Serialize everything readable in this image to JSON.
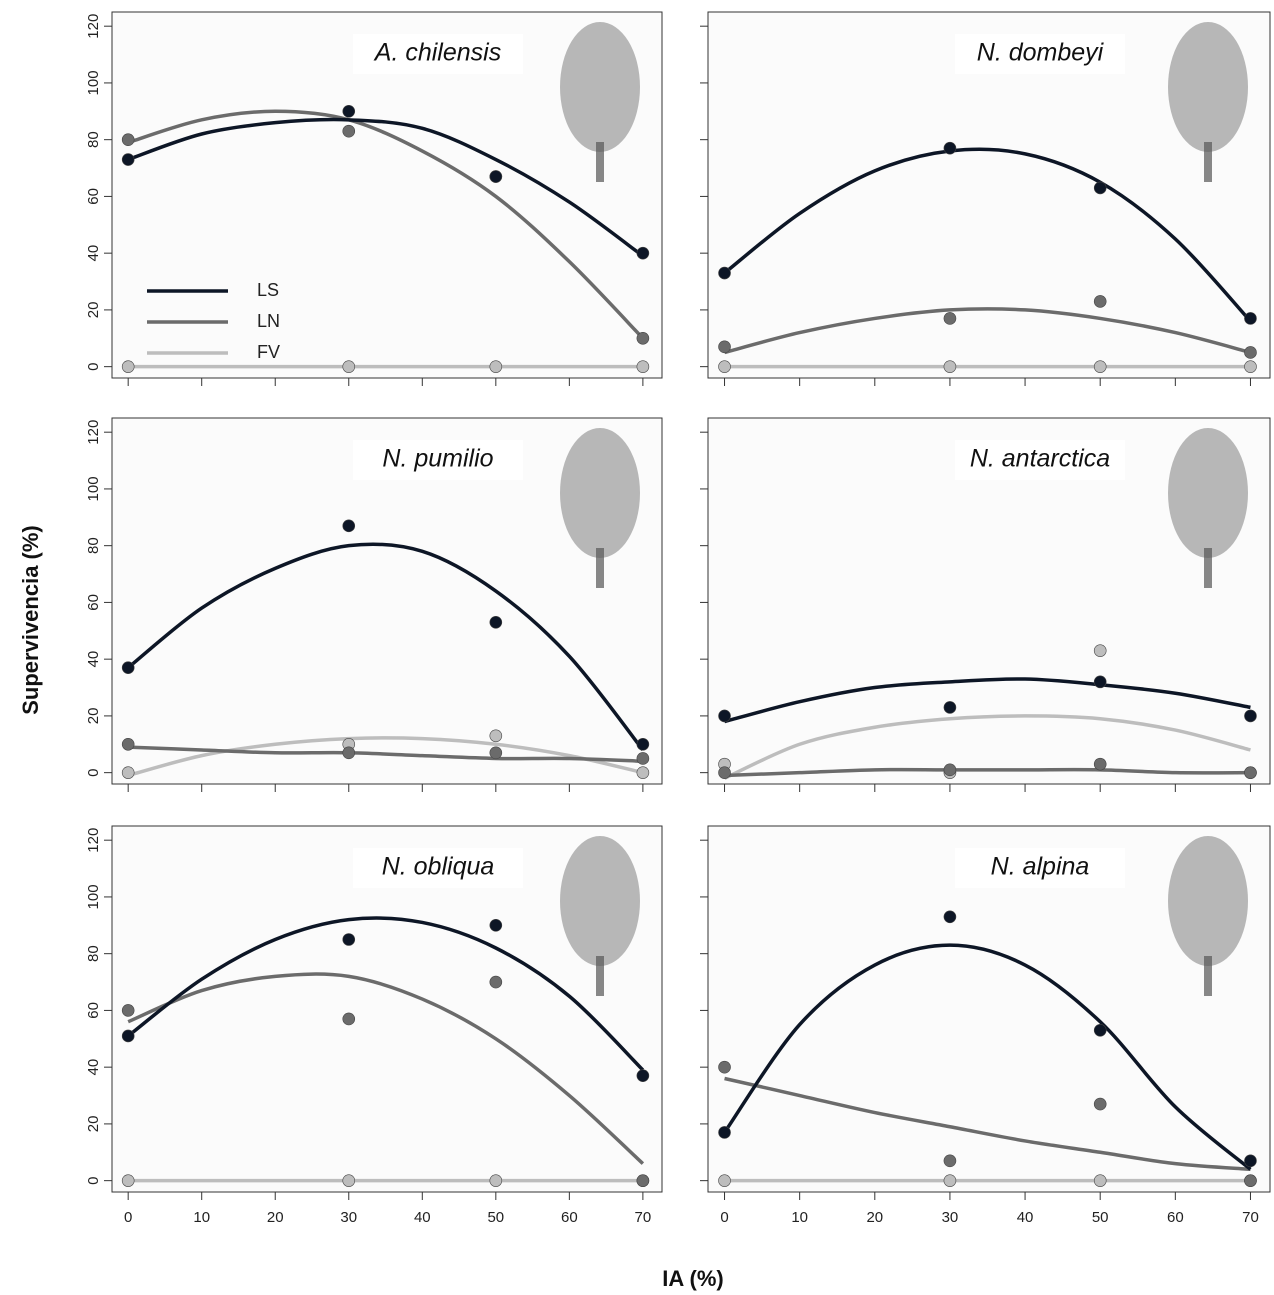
{
  "x_label": "IA (%)",
  "y_label": "Supervivencia (%)",
  "chart_data": [
    {
      "type": "scatter",
      "title": "A. chilensis",
      "x": [
        0,
        30,
        50,
        70
      ],
      "curve_x": [
        0,
        10,
        20,
        30,
        40,
        50,
        60,
        70
      ],
      "xlim": [
        -2.2,
        72.6
      ],
      "ylim": [
        -4,
        125
      ],
      "xticks": [
        0,
        10,
        20,
        30,
        40,
        50,
        60,
        70
      ],
      "yticks": [
        0,
        20,
        40,
        60,
        80,
        100,
        120
      ],
      "legend": "lower left",
      "series": [
        {
          "name": "LS",
          "color": "#0d1626",
          "values": [
            73,
            90,
            67,
            40
          ],
          "curve": [
            73,
            82,
            86,
            87,
            84,
            73,
            58,
            39
          ]
        },
        {
          "name": "LN",
          "color": "#6b6b6b",
          "values": [
            80,
            83,
            67,
            10
          ],
          "curve": [
            79,
            87,
            90,
            87,
            76,
            60,
            37,
            10
          ]
        },
        {
          "name": "FV",
          "color": "#bdbdbd",
          "values": [
            0,
            0,
            0,
            0
          ],
          "curve": [
            0,
            0,
            0,
            0,
            0,
            0,
            0,
            0
          ]
        }
      ]
    },
    {
      "type": "scatter",
      "title": "N. dombeyi",
      "x": [
        0,
        30,
        50,
        70
      ],
      "curve_x": [
        0,
        10,
        20,
        30,
        40,
        50,
        60,
        70
      ],
      "xlim": [
        -2.2,
        72.6
      ],
      "ylim": [
        -4,
        125
      ],
      "xticks": [
        0,
        10,
        20,
        30,
        40,
        50,
        60,
        70
      ],
      "yticks": [
        0,
        20,
        40,
        60,
        80,
        100,
        120
      ],
      "series": [
        {
          "name": "LS",
          "color": "#0d1626",
          "values": [
            33,
            77,
            63,
            17
          ],
          "curve": [
            33,
            54,
            69,
            76,
            75,
            65,
            45,
            16
          ]
        },
        {
          "name": "LN",
          "color": "#6b6b6b",
          "values": [
            7,
            17,
            23,
            5
          ],
          "curve": [
            5,
            12,
            17,
            20,
            20,
            17,
            12,
            5
          ]
        },
        {
          "name": "FV",
          "color": "#bdbdbd",
          "values": [
            0,
            0,
            0,
            0
          ],
          "curve": [
            0,
            0,
            0,
            0,
            0,
            0,
            0,
            0
          ]
        }
      ]
    },
    {
      "type": "scatter",
      "title": "N. pumilio",
      "x": [
        0,
        30,
        50,
        70
      ],
      "curve_x": [
        0,
        10,
        20,
        30,
        40,
        50,
        60,
        70
      ],
      "xlim": [
        -2.2,
        72.6
      ],
      "ylim": [
        -4,
        125
      ],
      "xticks": [
        0,
        10,
        20,
        30,
        40,
        50,
        60,
        70
      ],
      "yticks": [
        0,
        20,
        40,
        60,
        80,
        100,
        120
      ],
      "series": [
        {
          "name": "LS",
          "color": "#0d1626",
          "values": [
            37,
            87,
            53,
            10
          ],
          "curve": [
            37,
            58,
            72,
            80,
            78,
            64,
            41,
            8
          ]
        },
        {
          "name": "LN",
          "color": "#6b6b6b",
          "values": [
            10,
            7,
            7,
            5
          ],
          "curve": [
            9,
            8,
            7,
            7,
            6,
            5,
            5,
            4
          ]
        },
        {
          "name": "FV",
          "color": "#bdbdbd",
          "values": [
            0,
            10,
            13,
            0
          ],
          "curve": [
            -1,
            6,
            10,
            12,
            12,
            10,
            6,
            0
          ]
        }
      ]
    },
    {
      "type": "scatter",
      "title": "N. antarctica",
      "x": [
        0,
        30,
        50,
        70
      ],
      "curve_x": [
        0,
        10,
        20,
        30,
        40,
        50,
        60,
        70
      ],
      "xlim": [
        -2.2,
        72.6
      ],
      "ylim": [
        -4,
        125
      ],
      "xticks": [
        0,
        10,
        20,
        30,
        40,
        50,
        60,
        70
      ],
      "yticks": [
        0,
        20,
        40,
        60,
        80,
        100,
        120
      ],
      "series": [
        {
          "name": "LS",
          "color": "#0d1626",
          "values": [
            20,
            23,
            32,
            20
          ],
          "curve": [
            18,
            25,
            30,
            32,
            33,
            31,
            28,
            23
          ]
        },
        {
          "name": "LN",
          "color": "#6b6b6b",
          "values": [
            0,
            1,
            3,
            0
          ],
          "curve": [
            -1,
            0,
            1,
            1,
            1,
            1,
            0,
            0
          ]
        },
        {
          "name": "FV",
          "color": "#bdbdbd",
          "values": [
            3,
            0,
            43,
            0
          ],
          "curve": [
            -2,
            10,
            16,
            19,
            20,
            19,
            15,
            8
          ]
        }
      ]
    },
    {
      "type": "scatter",
      "title": "N. obliqua",
      "x": [
        0,
        30,
        50,
        70
      ],
      "curve_x": [
        0,
        10,
        20,
        30,
        40,
        50,
        60,
        70
      ],
      "xlim": [
        -2.2,
        72.6
      ],
      "ylim": [
        -4,
        125
      ],
      "xticks": [
        0,
        10,
        20,
        30,
        40,
        50,
        60,
        70
      ],
      "yticks": [
        0,
        20,
        40,
        60,
        80,
        100,
        120
      ],
      "series": [
        {
          "name": "LS",
          "color": "#0d1626",
          "values": [
            51,
            85,
            90,
            37
          ],
          "curve": [
            51,
            71,
            85,
            92,
            91,
            82,
            65,
            39
          ]
        },
        {
          "name": "LN",
          "color": "#6b6b6b",
          "values": [
            60,
            57,
            70,
            0
          ],
          "curve": [
            56,
            67,
            72,
            72,
            64,
            50,
            30,
            6
          ]
        },
        {
          "name": "FV",
          "color": "#bdbdbd",
          "values": [
            0,
            0,
            0,
            0
          ],
          "curve": [
            0,
            0,
            0,
            0,
            0,
            0,
            0,
            0
          ]
        }
      ]
    },
    {
      "type": "scatter",
      "title": "N. alpina",
      "x": [
        0,
        30,
        50,
        70
      ],
      "curve_x": [
        0,
        10,
        20,
        30,
        40,
        50,
        60,
        70
      ],
      "xlim": [
        -2.2,
        72.6
      ],
      "ylim": [
        -4,
        125
      ],
      "xticks": [
        0,
        10,
        20,
        30,
        40,
        50,
        60,
        70
      ],
      "yticks": [
        0,
        20,
        40,
        60,
        80,
        100,
        120
      ],
      "series": [
        {
          "name": "LS",
          "color": "#0d1626",
          "values": [
            17,
            93,
            53,
            7
          ],
          "curve": [
            17,
            55,
            76,
            83,
            76,
            56,
            26,
            4
          ]
        },
        {
          "name": "LN",
          "color": "#6b6b6b",
          "values": [
            40,
            7,
            27,
            0
          ],
          "curve": [
            36,
            30,
            24,
            19,
            14,
            10,
            6,
            4
          ]
        },
        {
          "name": "FV",
          "color": "#bdbdbd",
          "values": [
            0,
            0,
            0,
            0
          ],
          "curve": [
            0,
            0,
            0,
            0,
            0,
            0,
            0,
            0
          ]
        }
      ]
    }
  ]
}
